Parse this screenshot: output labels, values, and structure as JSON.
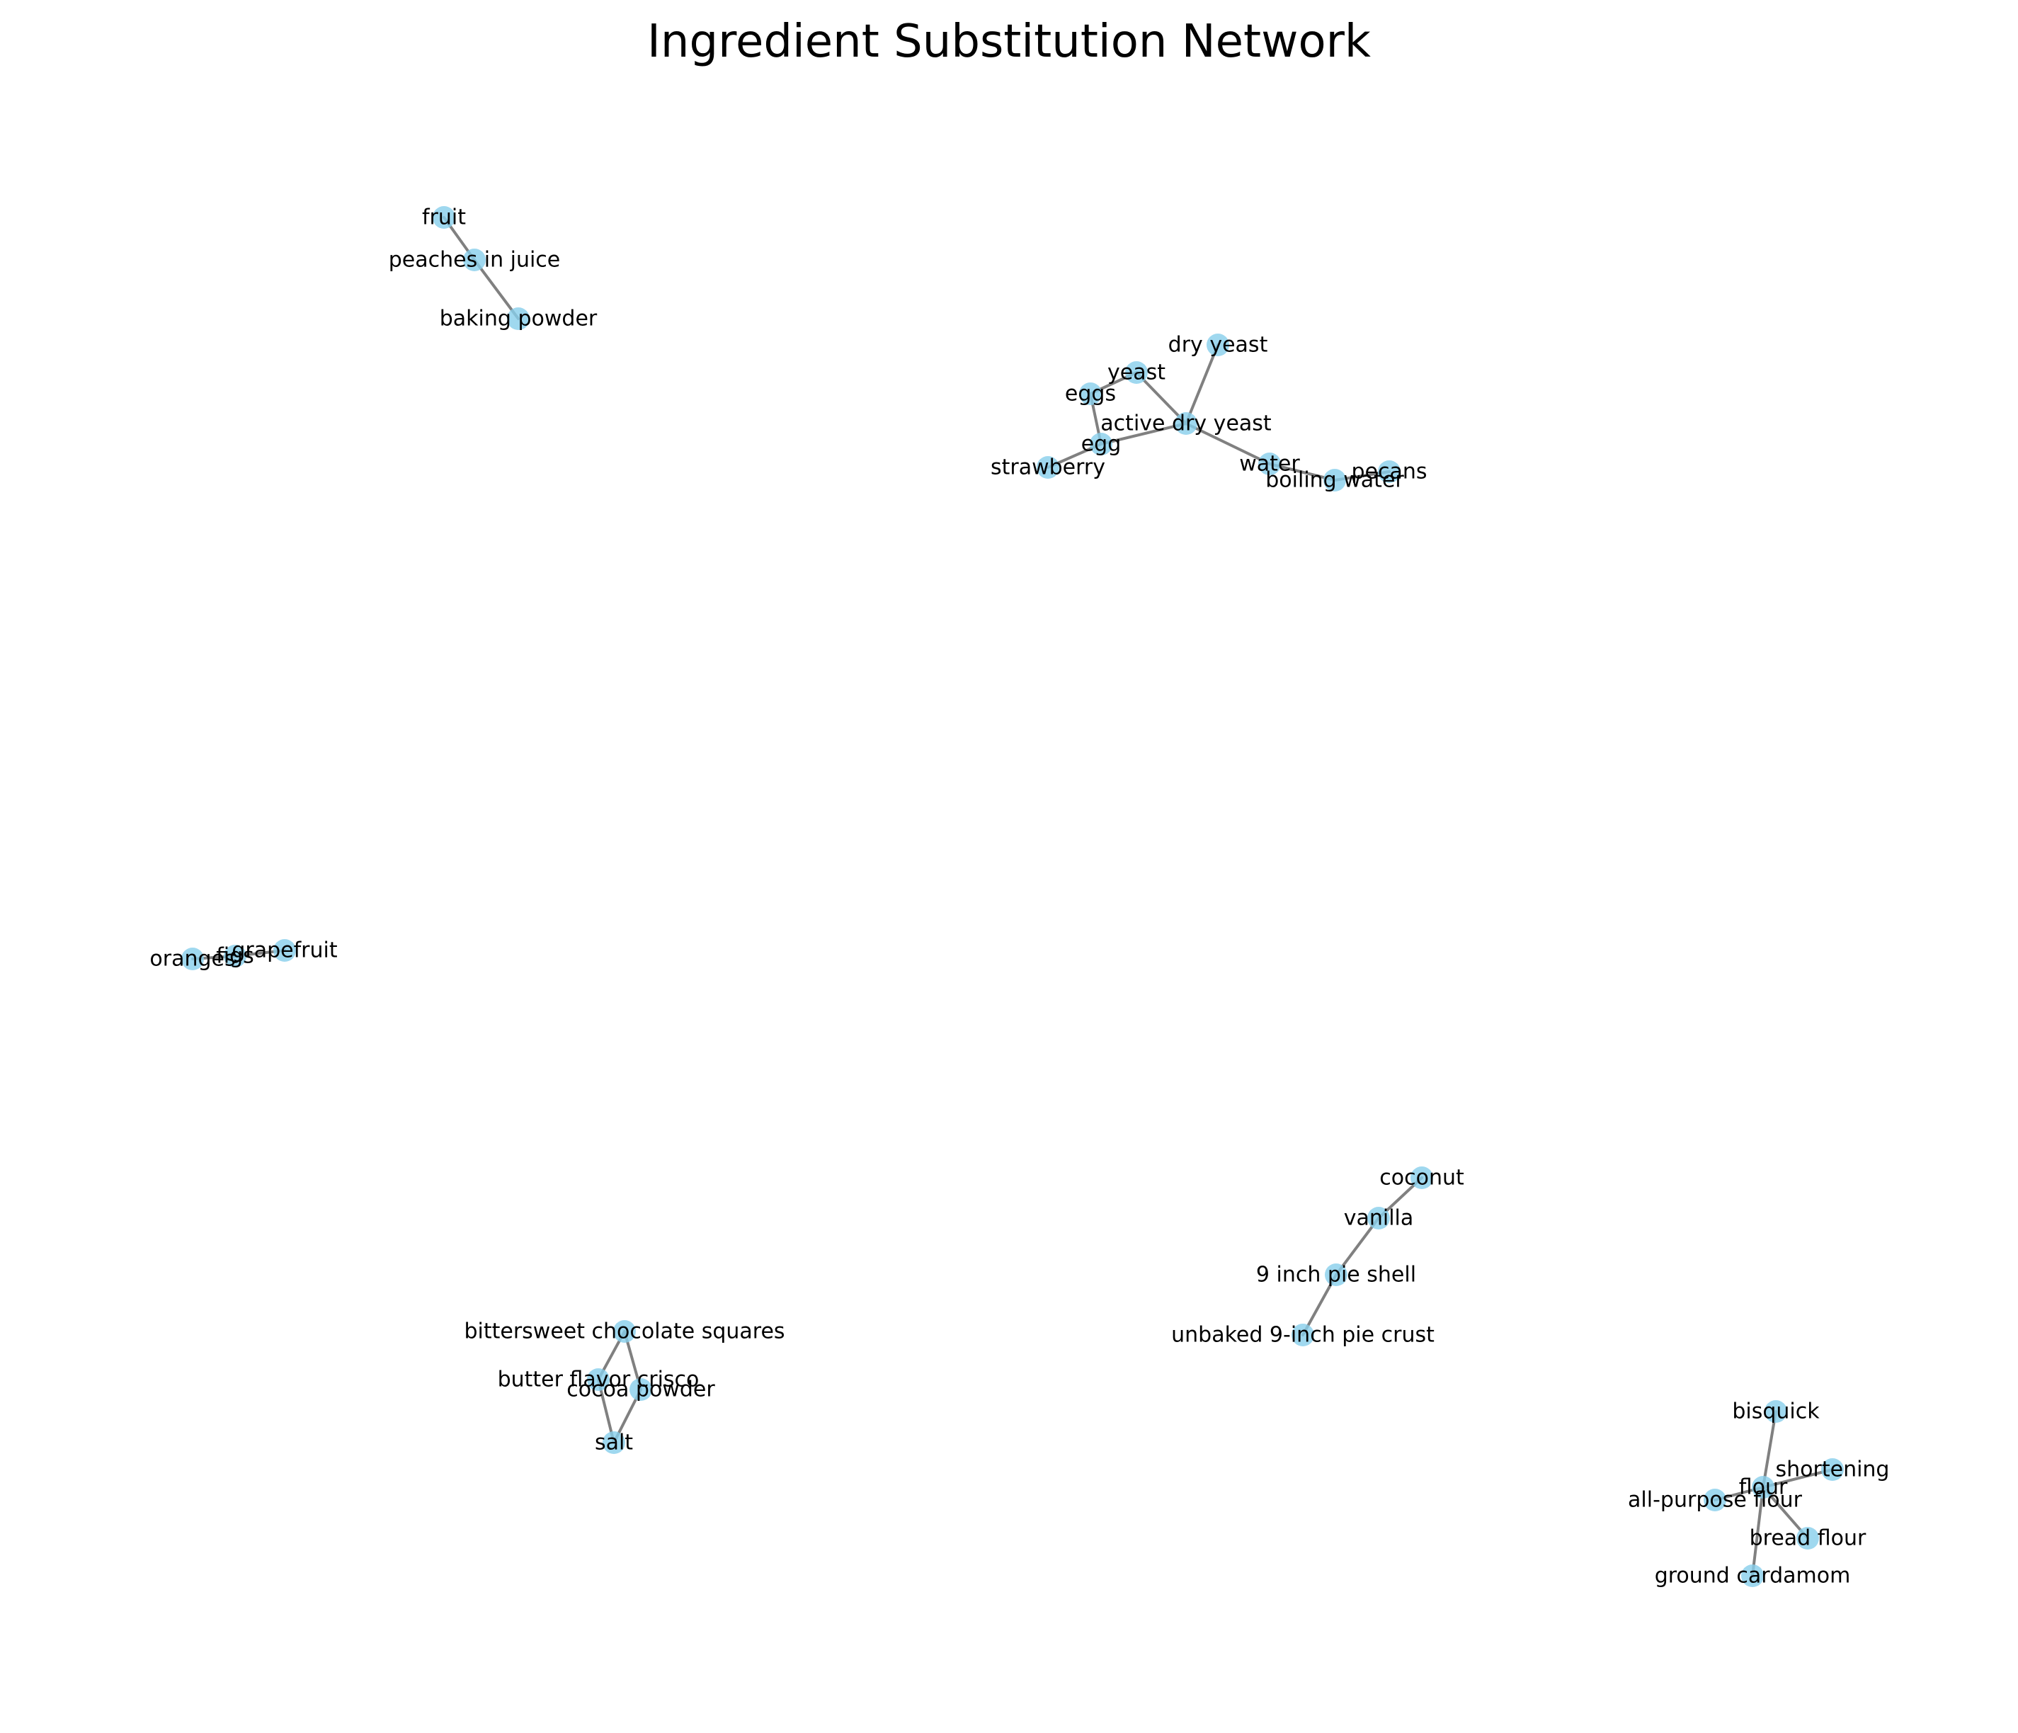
{
  "title": "Ingredient Substitution Network",
  "graph": {
    "node_color": "#87ceeb",
    "edge_color": "#808080",
    "nodes": [
      {
        "id": "fruit",
        "label": "fruit"
      },
      {
        "id": "peaches in juice",
        "label": "peaches in juice"
      },
      {
        "id": "baking powder",
        "label": "baking powder"
      },
      {
        "id": "dry yeast",
        "label": "dry yeast"
      },
      {
        "id": "yeast",
        "label": "yeast"
      },
      {
        "id": "eggs",
        "label": "eggs"
      },
      {
        "id": "active dry yeast",
        "label": "active dry yeast"
      },
      {
        "id": "egg",
        "label": "egg"
      },
      {
        "id": "strawberry",
        "label": "strawberry"
      },
      {
        "id": "water",
        "label": "water"
      },
      {
        "id": "boiling water",
        "label": "boiling water"
      },
      {
        "id": "pecans",
        "label": "pecans"
      },
      {
        "id": "oranges",
        "label": "oranges"
      },
      {
        "id": "figs",
        "label": "figs"
      },
      {
        "id": "grapefruit",
        "label": "grapefruit"
      },
      {
        "id": "coconut",
        "label": "coconut"
      },
      {
        "id": "vanilla",
        "label": "vanilla"
      },
      {
        "id": "9 inch pie shell",
        "label": "9 inch pie shell"
      },
      {
        "id": "unbaked 9-inch pie crust",
        "label": "unbaked 9-inch pie crust"
      },
      {
        "id": "bittersweet chocolate squares",
        "label": "bittersweet chocolate squares"
      },
      {
        "id": "butter flavor crisco",
        "label": "butter flavor crisco"
      },
      {
        "id": "cocoa powder",
        "label": "cocoa powder"
      },
      {
        "id": "salt",
        "label": "salt"
      },
      {
        "id": "bisquick",
        "label": "bisquick"
      },
      {
        "id": "shortening",
        "label": "shortening"
      },
      {
        "id": "flour",
        "label": "flour"
      },
      {
        "id": "all-purpose flour",
        "label": "all-purpose flour"
      },
      {
        "id": "bread flour",
        "label": "bread flour"
      },
      {
        "id": "ground cardamom",
        "label": "ground cardamom"
      }
    ],
    "edges": [
      [
        "fruit",
        "peaches in juice"
      ],
      [
        "peaches in juice",
        "baking powder"
      ],
      [
        "active dry yeast",
        "dry yeast"
      ],
      [
        "active dry yeast",
        "yeast"
      ],
      [
        "active dry yeast",
        "egg"
      ],
      [
        "active dry yeast",
        "water"
      ],
      [
        "yeast",
        "eggs"
      ],
      [
        "eggs",
        "egg"
      ],
      [
        "egg",
        "strawberry"
      ],
      [
        "water",
        "boiling water"
      ],
      [
        "boiling water",
        "pecans"
      ],
      [
        "oranges",
        "figs"
      ],
      [
        "figs",
        "grapefruit"
      ],
      [
        "coconut",
        "vanilla"
      ],
      [
        "vanilla",
        "9 inch pie shell"
      ],
      [
        "9 inch pie shell",
        "unbaked 9-inch pie crust"
      ],
      [
        "bittersweet chocolate squares",
        "butter flavor crisco"
      ],
      [
        "bittersweet chocolate squares",
        "cocoa powder"
      ],
      [
        "butter flavor crisco",
        "salt"
      ],
      [
        "cocoa powder",
        "salt"
      ],
      [
        "bisquick",
        "flour"
      ],
      [
        "flour",
        "shortening"
      ],
      [
        "flour",
        "all-purpose flour"
      ],
      [
        "flour",
        "bread flour"
      ],
      [
        "flour",
        "ground cardamom"
      ]
    ]
  }
}
